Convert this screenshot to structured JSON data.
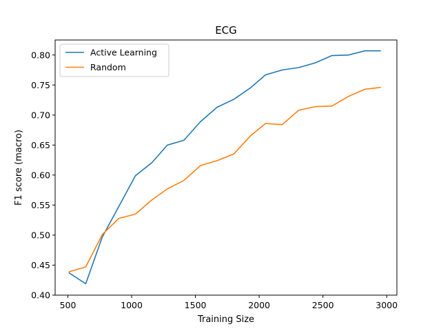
{
  "chart_data": {
    "type": "line",
    "title": "ECG",
    "xlabel": "Training Size",
    "ylabel": "F1 score (macro)",
    "xlim": [
      400,
      3080
    ],
    "ylim": [
      0.4,
      0.825
    ],
    "xticks": [
      500,
      1000,
      1500,
      2000,
      2500,
      3000
    ],
    "yticks": [
      0.4,
      0.45,
      0.5,
      0.55,
      0.6,
      0.65,
      0.7,
      0.75,
      0.8
    ],
    "grid": false,
    "legend_position": "top-left",
    "x": [
      510,
      640,
      770,
      900,
      1030,
      1160,
      1280,
      1410,
      1540,
      1670,
      1800,
      1930,
      2050,
      2180,
      2310,
      2440,
      2570,
      2700,
      2830,
      2950
    ],
    "series": [
      {
        "name": "Active Learning",
        "color": "#1f77b4",
        "values": [
          0.437,
          0.419,
          0.497,
          0.548,
          0.599,
          0.621,
          0.65,
          0.658,
          0.689,
          0.713,
          0.726,
          0.745,
          0.767,
          0.775,
          0.779,
          0.787,
          0.799,
          0.8,
          0.807,
          0.807
        ]
      },
      {
        "name": "Random",
        "color": "#ff7f0e",
        "values": [
          0.439,
          0.447,
          0.501,
          0.528,
          0.535,
          0.559,
          0.577,
          0.591,
          0.616,
          0.624,
          0.635,
          0.665,
          0.686,
          0.684,
          0.708,
          0.714,
          0.715,
          0.731,
          0.743,
          0.746
        ]
      }
    ]
  }
}
